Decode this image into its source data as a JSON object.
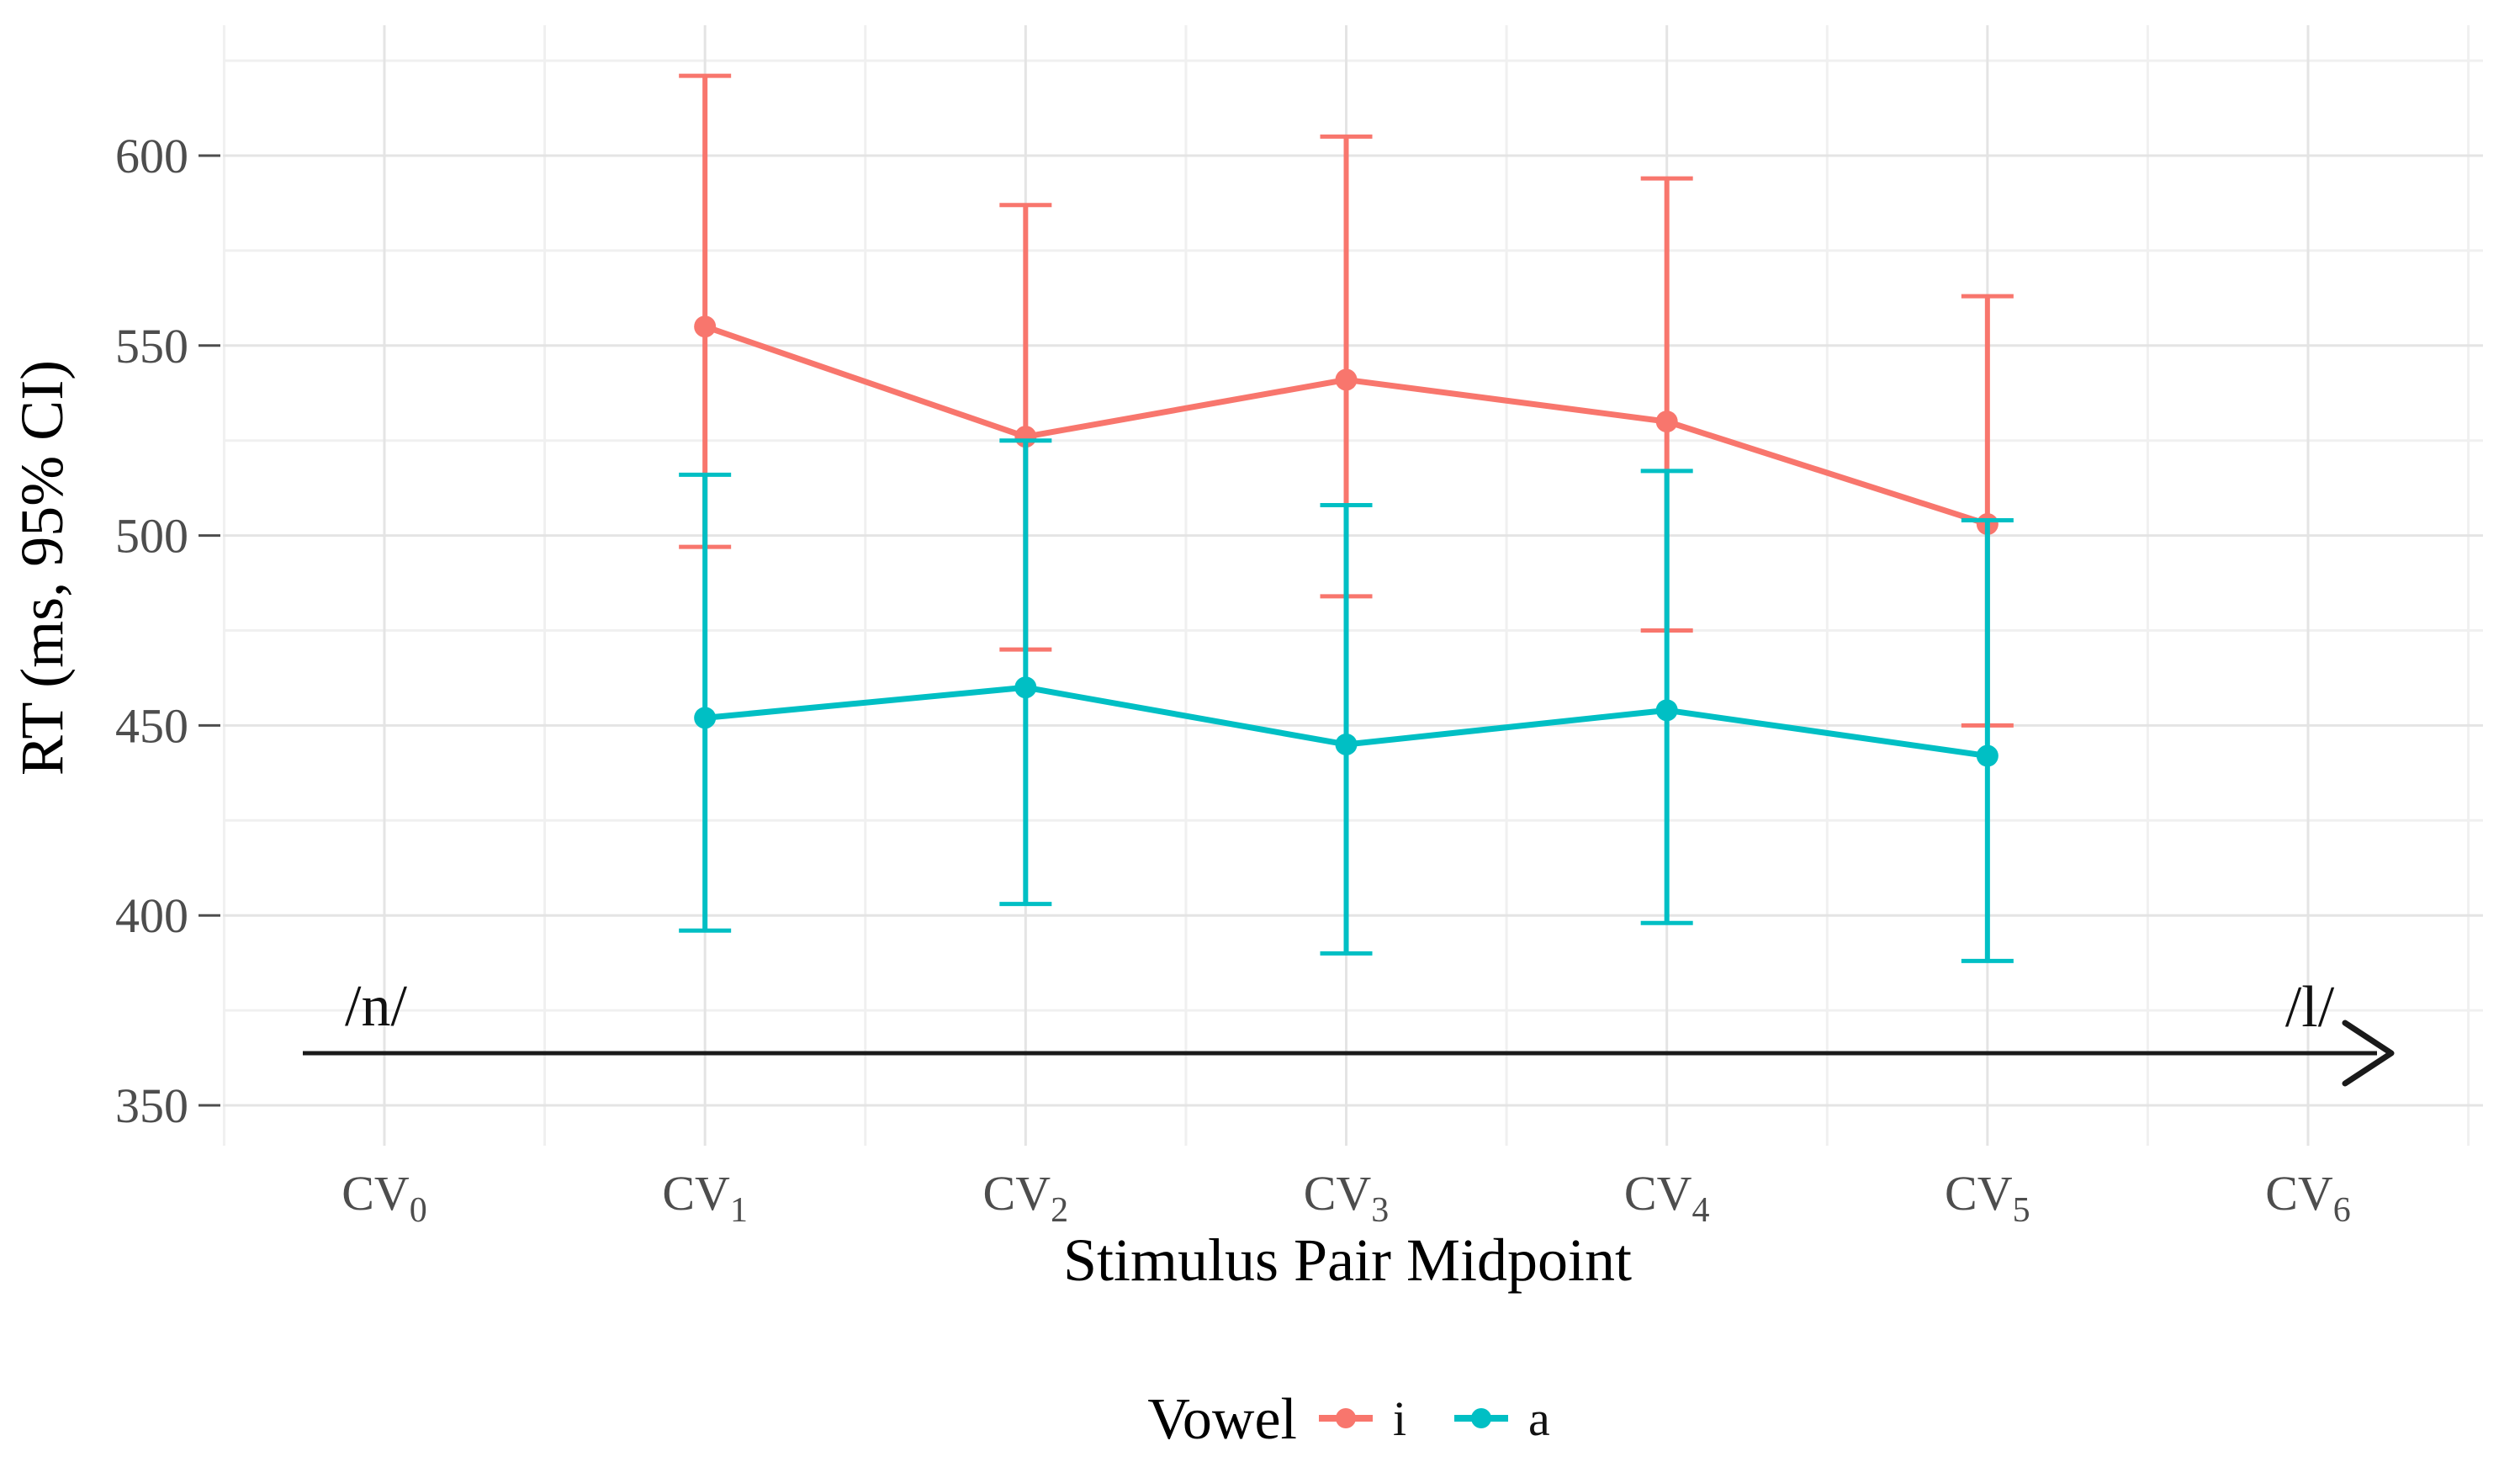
{
  "chart_data": {
    "type": "line",
    "title": "",
    "xlabel": "Stimulus Pair Midpoint",
    "ylabel": "RT (ms, 95% CI)",
    "categories": [
      "CV0",
      "CV1",
      "CV2",
      "CV3",
      "CV4",
      "CV5",
      "CV6"
    ],
    "y_ticks": [
      350,
      400,
      450,
      500,
      550,
      600
    ],
    "ylim": [
      339,
      634
    ],
    "grid": "major+minor, light gray on white",
    "error_bars": "95% CI with caps",
    "legend_position": "bottom-center",
    "legend_title": "Vowel",
    "series": [
      {
        "name": "i",
        "color": "#F8766D",
        "points": [
          {
            "x": "CV1",
            "mean": 555,
            "lo": 497,
            "hi": 621
          },
          {
            "x": "CV2",
            "mean": 526,
            "lo": 470,
            "hi": 587
          },
          {
            "x": "CV3",
            "mean": 541,
            "lo": 484,
            "hi": 605
          },
          {
            "x": "CV4",
            "mean": 530,
            "lo": 475,
            "hi": 594
          },
          {
            "x": "CV5",
            "mean": 503,
            "lo": 450,
            "hi": 563
          }
        ]
      },
      {
        "name": "a",
        "color": "#00BFC4",
        "points": [
          {
            "x": "CV1",
            "mean": 452,
            "lo": 396,
            "hi": 516
          },
          {
            "x": "CV2",
            "mean": 460,
            "lo": 403,
            "hi": 525
          },
          {
            "x": "CV3",
            "mean": 445,
            "lo": 390,
            "hi": 508
          },
          {
            "x": "CV4",
            "mean": 454,
            "lo": 398,
            "hi": 517
          },
          {
            "x": "CV5",
            "mean": 442,
            "lo": 388,
            "hi": 504
          }
        ]
      }
    ],
    "annotations": [
      {
        "text": "/n/",
        "position": "left",
        "y_value": 376
      },
      {
        "text": "/l/",
        "position": "right",
        "y_value": 376
      },
      {
        "type": "arrow",
        "direction": "left-to-right",
        "y_value": 363
      }
    ],
    "palette": {
      "series_i": "#F8766D",
      "series_a": "#00BFC4",
      "grid_major": "#e4e4e4",
      "grid_minor": "#f0f0f0",
      "tick_text": "#4d4d4d",
      "annotation_arrow": "#1a1a1a"
    }
  }
}
